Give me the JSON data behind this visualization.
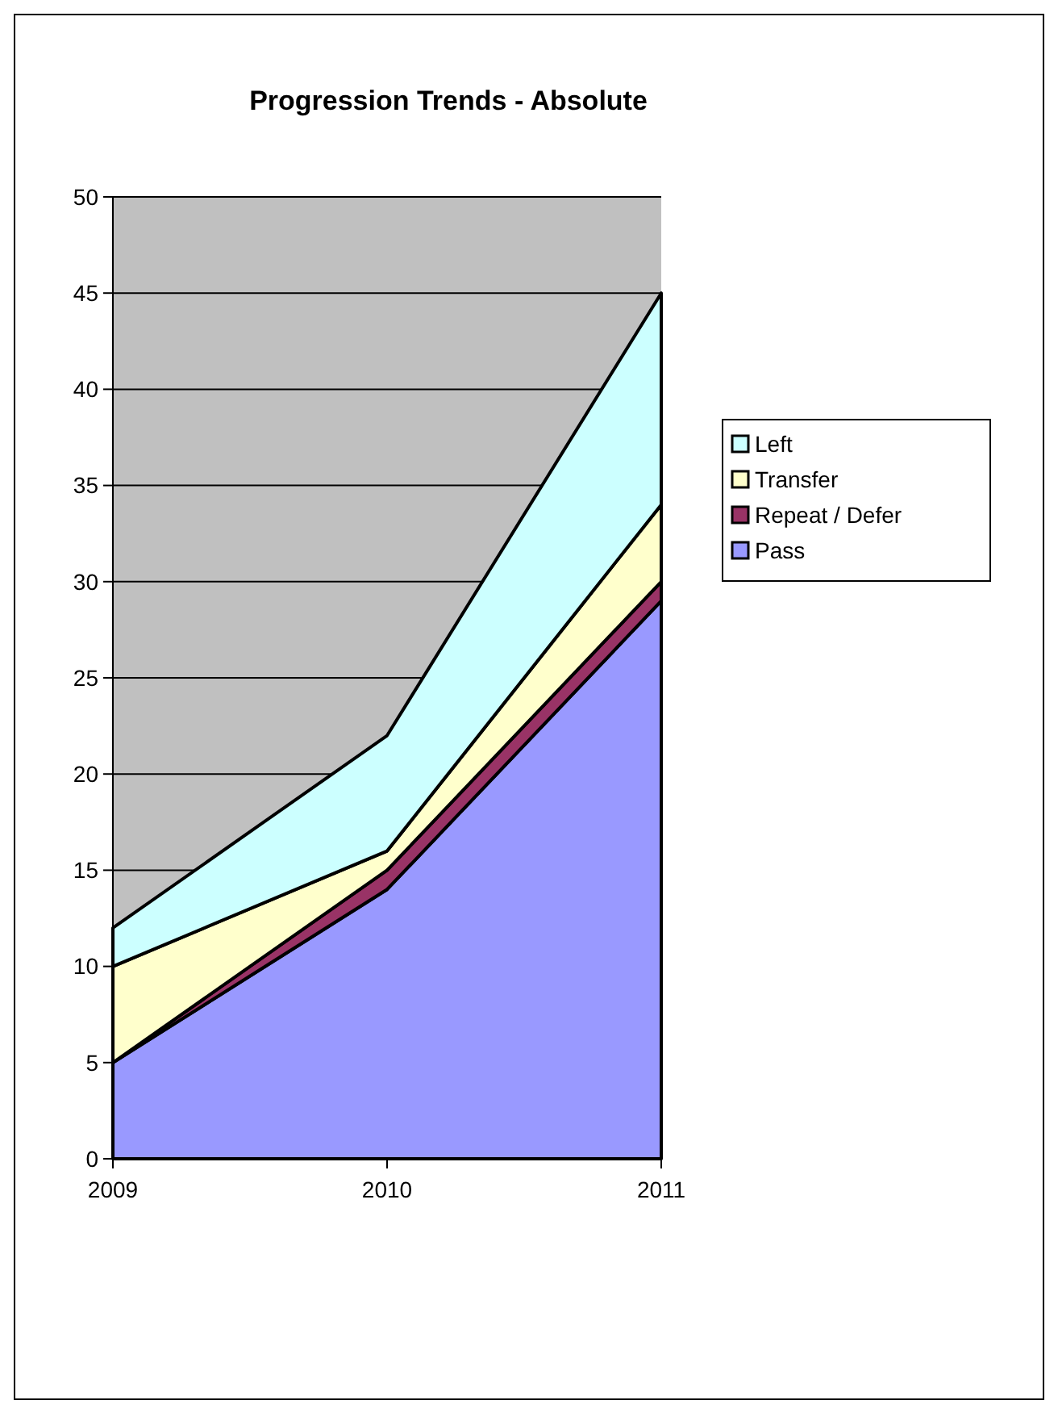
{
  "chart_data": {
    "type": "area",
    "title": "Progression Trends - Absolute",
    "categories": [
      "2009",
      "2010",
      "2011"
    ],
    "stacked": true,
    "ylim": [
      0,
      50
    ],
    "yticks": [
      0,
      5,
      10,
      15,
      20,
      25,
      30,
      35,
      40,
      45,
      50
    ],
    "grid": "y",
    "legend": "right",
    "series": [
      {
        "name": "Pass",
        "color": "#9999ff",
        "values": [
          5,
          14,
          29
        ]
      },
      {
        "name": "Repeat / Defer",
        "color": "#993366",
        "values": [
          0,
          1,
          1
        ]
      },
      {
        "name": "Transfer",
        "color": "#ffffcc",
        "values": [
          5,
          1,
          4
        ]
      },
      {
        "name": "Left",
        "color": "#ccffff",
        "values": [
          2,
          6,
          11
        ]
      }
    ]
  }
}
